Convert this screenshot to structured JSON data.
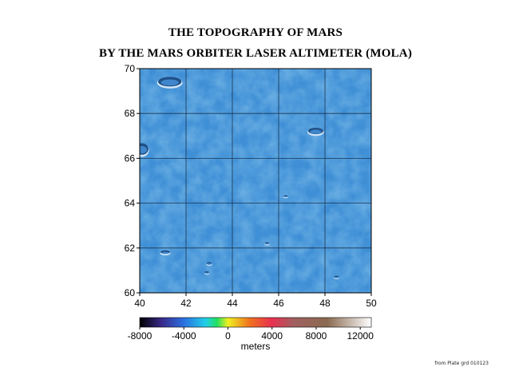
{
  "header": {
    "title_line1": "THE TOPOGRAPHY OF MARS",
    "title_line2": "BY THE MARS ORBITER LASER ALTIMETER (MOLA)"
  },
  "map": {
    "x_ticks": [
      40,
      42,
      44,
      46,
      48,
      50
    ],
    "y_ticks": [
      60,
      62,
      64,
      66,
      68,
      70
    ],
    "x_range": [
      40,
      50
    ],
    "y_range": [
      60,
      70
    ],
    "grid": true,
    "surface_color": "#3f8fd6",
    "craters": [
      {
        "lon": 41.3,
        "lat": 69.4,
        "rlon": 0.55,
        "rlat": 0.25
      },
      {
        "lon": 47.6,
        "lat": 67.2,
        "rlon": 0.35,
        "rlat": 0.17
      },
      {
        "lon": 40.1,
        "lat": 66.4,
        "rlon": 0.3,
        "rlat": 0.3
      },
      {
        "lon": 41.1,
        "lat": 61.8,
        "rlon": 0.22,
        "rlat": 0.09
      },
      {
        "lon": 43.0,
        "lat": 61.3,
        "rlon": 0.12,
        "rlat": 0.06
      },
      {
        "lon": 42.9,
        "lat": 60.9,
        "rlon": 0.1,
        "rlat": 0.05
      },
      {
        "lon": 48.5,
        "lat": 60.7,
        "rlon": 0.12,
        "rlat": 0.05
      },
      {
        "lon": 46.3,
        "lat": 64.3,
        "rlon": 0.1,
        "rlat": 0.04
      },
      {
        "lon": 45.5,
        "lat": 62.2,
        "rlon": 0.1,
        "rlat": 0.05
      }
    ]
  },
  "colorbar": {
    "ticks": [
      "-8000",
      "-4000",
      "0",
      "4000",
      "8000",
      "12000"
    ],
    "range": [
      -8000,
      13000
    ],
    "label": "meters",
    "stops": [
      {
        "value": -8000,
        "color": "#000000"
      },
      {
        "value": -6000,
        "color": "#3a2a8a"
      },
      {
        "value": -4000,
        "color": "#2a70e0"
      },
      {
        "value": -2000,
        "color": "#20d0e8"
      },
      {
        "value": -1000,
        "color": "#20e060"
      },
      {
        "value": 0,
        "color": "#f0f020"
      },
      {
        "value": 2000,
        "color": "#f07020"
      },
      {
        "value": 4000,
        "color": "#e83050"
      },
      {
        "value": 6000,
        "color": "#a06060"
      },
      {
        "value": 9000,
        "color": "#8a6a50"
      },
      {
        "value": 13000,
        "color": "#ffffff"
      }
    ]
  },
  "footer": {
    "credit": "from Plate grd 010123"
  }
}
